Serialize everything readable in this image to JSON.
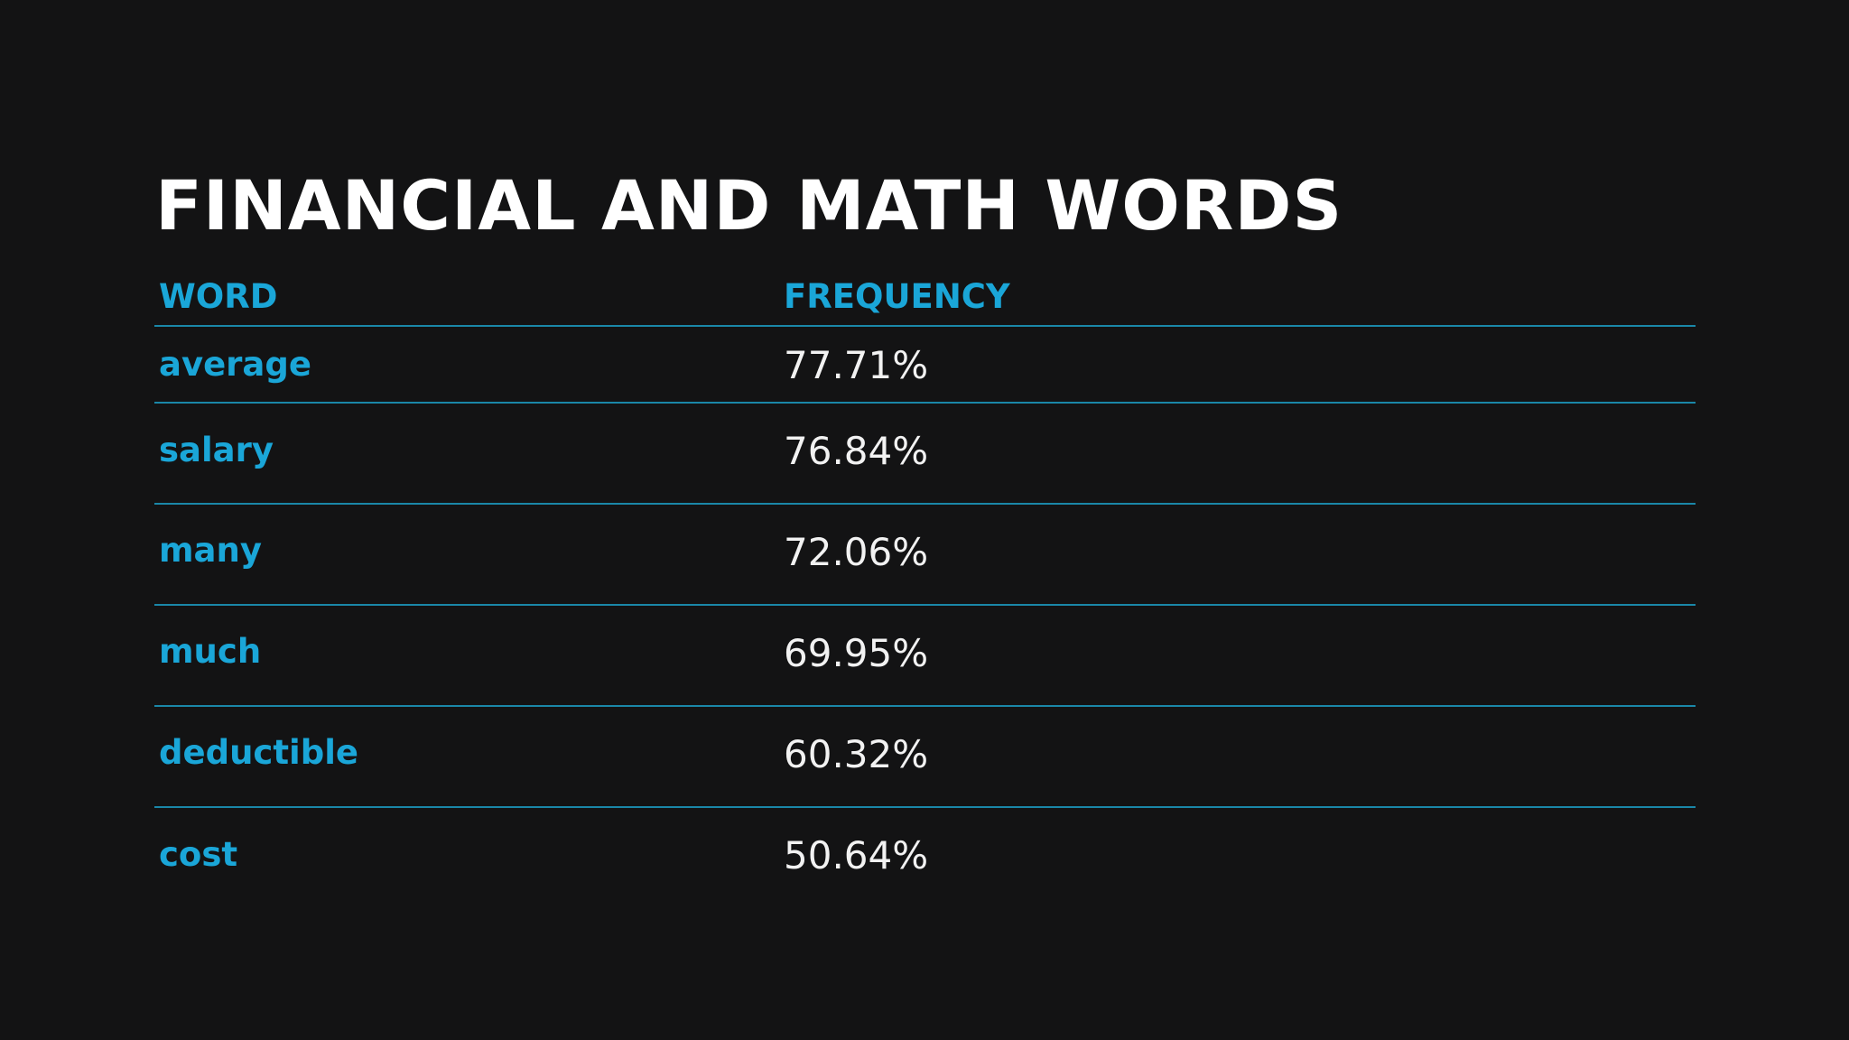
{
  "title": "FINANCIAL AND MATH WORDS",
  "colors": {
    "background": "#131314",
    "accent": "#1aa6d8",
    "divider": "#1a87a8",
    "title": "#ffffff",
    "value": "#f2f2f2"
  },
  "table": {
    "headers": {
      "word": "WORD",
      "frequency": "FREQUENCY"
    },
    "rows": [
      {
        "word": "average",
        "frequency": "77.71%"
      },
      {
        "word": "salary",
        "frequency": "76.84%"
      },
      {
        "word": "many",
        "frequency": "72.06%"
      },
      {
        "word": "much",
        "frequency": "69.95%"
      },
      {
        "word": "deductible",
        "frequency": "60.32%"
      },
      {
        "word": "cost",
        "frequency": "50.64%"
      }
    ]
  }
}
